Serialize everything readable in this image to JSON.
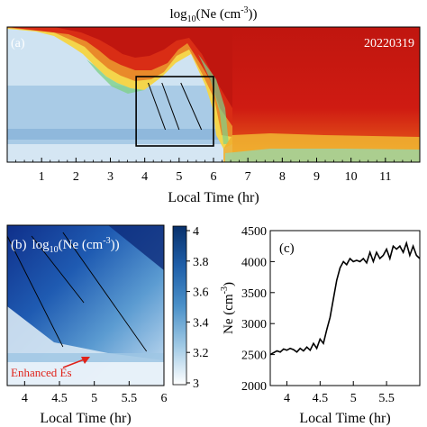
{
  "chart_data": [
    {
      "id": "a",
      "type": "heatmap",
      "panel_label": "(a)",
      "title_base": "log",
      "title_sub": "10",
      "title_rest": "(Ne (cm",
      "title_sup": "-3",
      "title_end": "))",
      "date": "20220319",
      "xlabel": "Local Time (hr)",
      "xlim": [
        0,
        12
      ],
      "xticks": [
        "1",
        "2",
        "3",
        "4",
        "5",
        "6",
        "7",
        "8",
        "9",
        "10",
        "11"
      ],
      "box_x": [
        3.75,
        6.0
      ],
      "lines": [
        [
          4.1,
          4.6
        ],
        [
          4.5,
          5.0
        ],
        [
          5.05,
          5.65
        ]
      ]
    },
    {
      "id": "b",
      "type": "heatmap",
      "panel_label": "(b)",
      "title_base": "log",
      "title_sub": "10",
      "title_rest": "(Ne (cm",
      "title_sup": "-3",
      "title_end": "))",
      "xlabel": "Local Time (hr)",
      "xlim": [
        3.75,
        6.0
      ],
      "xticks": [
        "4",
        "4.5",
        "5",
        "5.5",
        "6"
      ],
      "annotation": "Enhanced Es",
      "colorbar": {
        "range": [
          3,
          4
        ],
        "ticks": [
          "4",
          "3.8",
          "3.6",
          "3.4",
          "3.2",
          "3"
        ]
      }
    },
    {
      "id": "c",
      "type": "line",
      "panel_label": "(c)",
      "xlabel": "Local Time (hr)",
      "ylabel_base": "Ne (cm",
      "ylabel_sup": "-3",
      "ylabel_end": ")",
      "xlim": [
        3.75,
        6.0
      ],
      "ylim": [
        2000,
        4500
      ],
      "xticks": [
        "4",
        "4.5",
        "5",
        "5.5"
      ],
      "yticks": [
        "2000",
        "2500",
        "3000",
        "3500",
        "4000",
        "4500"
      ],
      "x": [
        3.75,
        3.85,
        3.9,
        3.95,
        4.0,
        4.05,
        4.1,
        4.15,
        4.2,
        4.25,
        4.3,
        4.35,
        4.4,
        4.45,
        4.5,
        4.55,
        4.6,
        4.65,
        4.7,
        4.75,
        4.8,
        4.85,
        4.9,
        4.95,
        5.0,
        5.05,
        5.1,
        5.15,
        5.2,
        5.25,
        5.3,
        5.35,
        5.4,
        5.45,
        5.5,
        5.55,
        5.6,
        5.65,
        5.7,
        5.75,
        5.8,
        5.85,
        5.9,
        5.95,
        6.0
      ],
      "y": [
        2500,
        2560,
        2540,
        2590,
        2570,
        2600,
        2580,
        2540,
        2600,
        2560,
        2620,
        2570,
        2680,
        2600,
        2750,
        2680,
        2900,
        3100,
        3400,
        3700,
        3900,
        4000,
        3950,
        4050,
        4000,
        4020,
        4000,
        4050,
        3980,
        4150,
        4000,
        4150,
        4050,
        4100,
        4200,
        4050,
        4250,
        4200,
        4250,
        4150,
        4300,
        4100,
        4250,
        4100,
        4050
      ]
    }
  ]
}
